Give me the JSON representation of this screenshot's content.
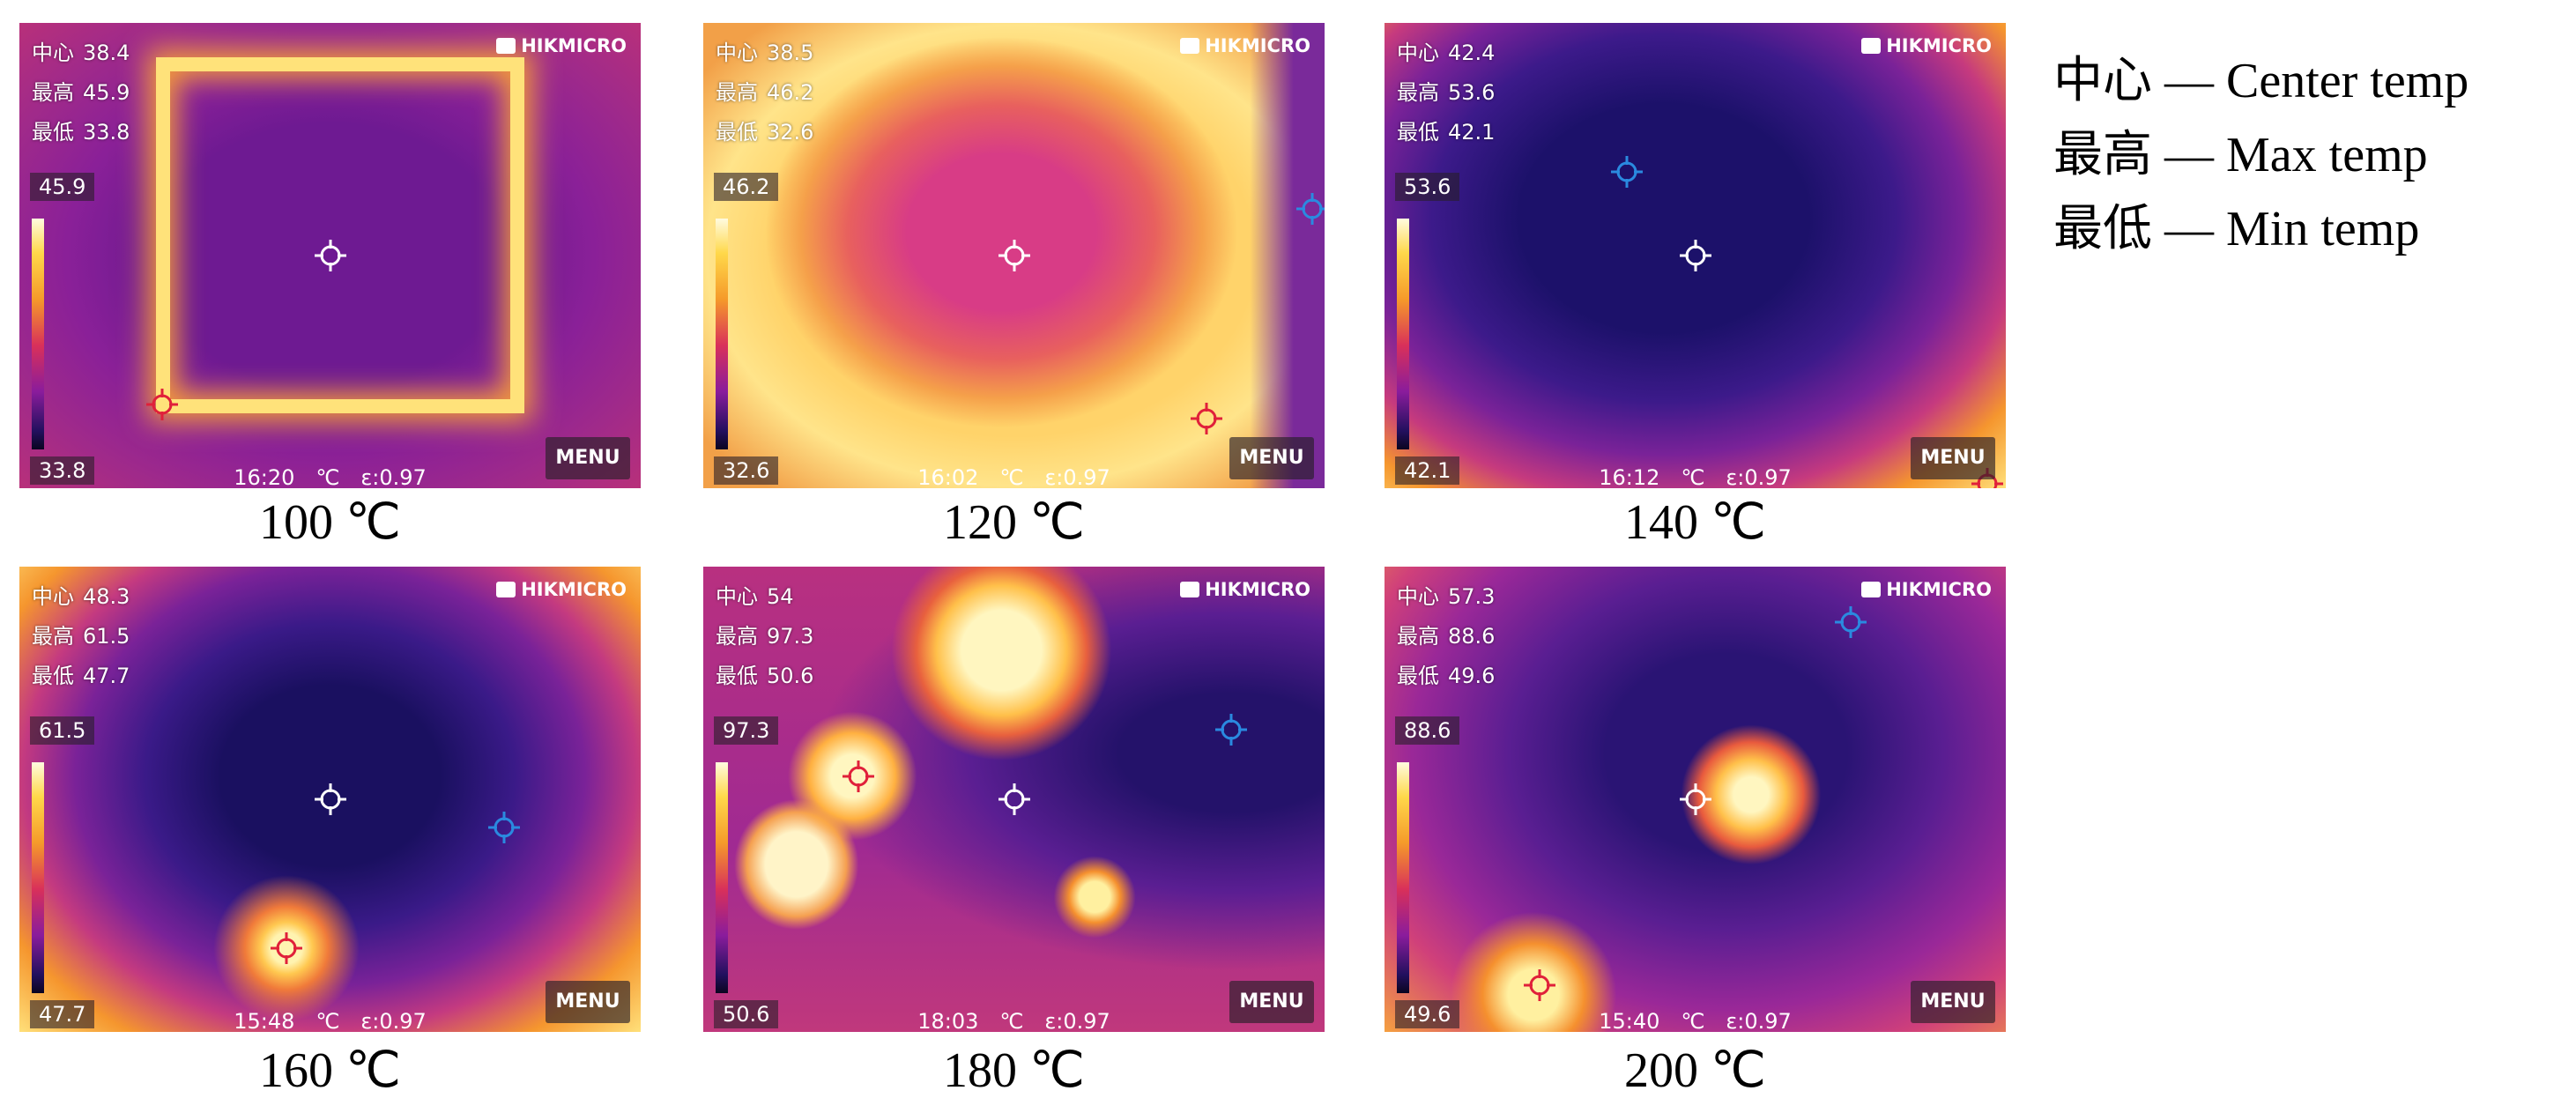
{
  "labels": {
    "center": "中心",
    "max": "最高",
    "min": "最低"
  },
  "brand": "HIKMICRO",
  "menu": "MENU",
  "unit": "℃",
  "emissivity": "ε:0.97",
  "panels": [
    {
      "caption": "100 ℃",
      "center": 38.4,
      "max": 45.9,
      "min": 33.8,
      "time": "16:20"
    },
    {
      "caption": "120 ℃",
      "center": 38.5,
      "max": 46.2,
      "min": 32.6,
      "time": "16:02"
    },
    {
      "caption": "140 ℃",
      "center": 42.4,
      "max": 53.6,
      "min": 42.1,
      "time": "16:12"
    },
    {
      "caption": "160 ℃",
      "center": 48.3,
      "max": 61.5,
      "min": 47.7,
      "time": "15:48"
    },
    {
      "caption": "180 ℃",
      "center": 54.0,
      "max": 97.3,
      "min": 50.6,
      "time": "18:03"
    },
    {
      "caption": "200 ℃",
      "center": 57.3,
      "max": 88.6,
      "min": 49.6,
      "time": "15:40"
    }
  ],
  "legend": [
    "— Center temp",
    "— Max temp",
    "— Min temp"
  ]
}
